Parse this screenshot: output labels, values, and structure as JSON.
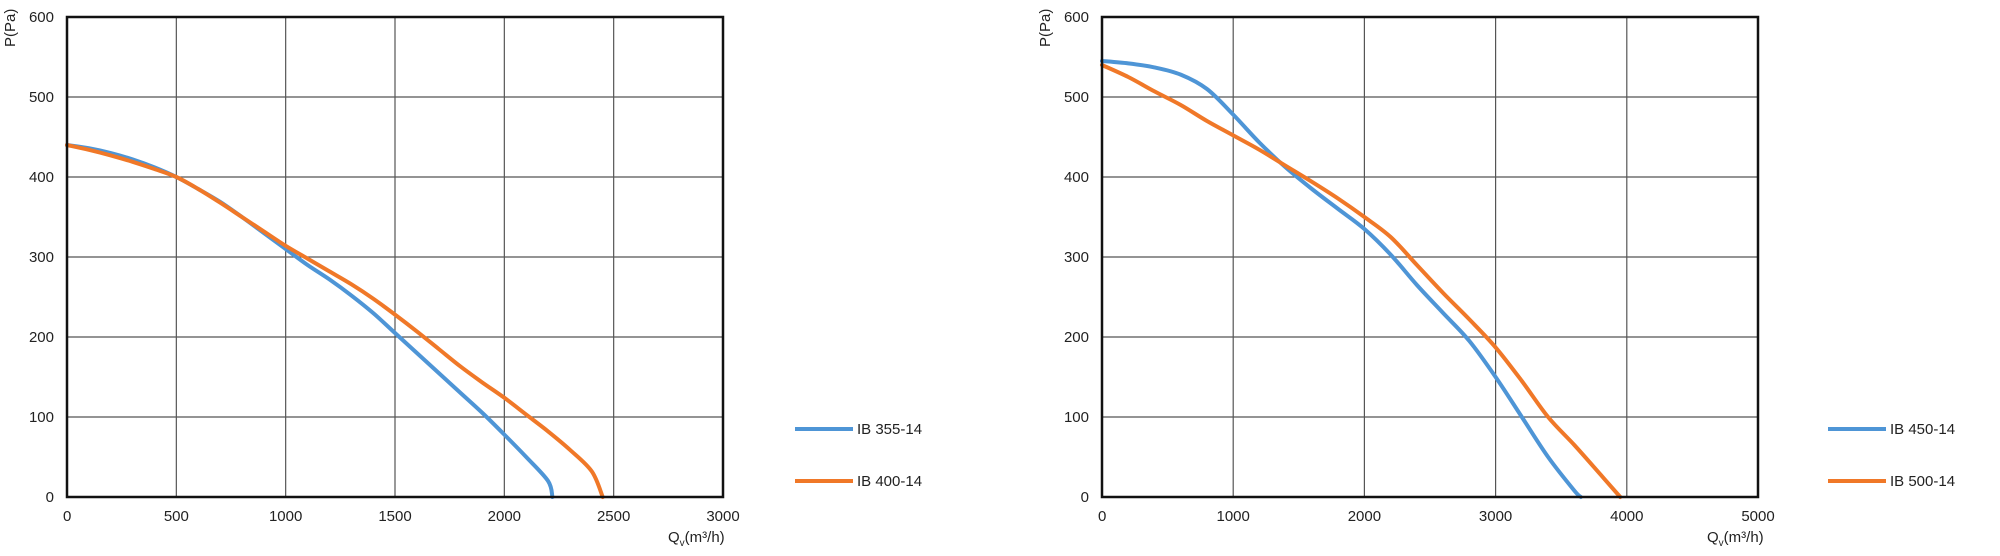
{
  "chart_data": [
    {
      "type": "line",
      "xlabel": "Q",
      "xlabel_sub": "v",
      "xlabel_unit": "(m³/h)",
      "ylabel": "P(Pa)",
      "xlim": [
        0,
        3000
      ],
      "ylim": [
        0,
        600
      ],
      "xticks": [
        0,
        500,
        1000,
        1500,
        2000,
        2500,
        3000
      ],
      "yticks": [
        0,
        100,
        200,
        300,
        400,
        500,
        600
      ],
      "grid": true,
      "legend_position": "right",
      "series": [
        {
          "name": "IB 355-14",
          "color": "#4e95d6",
          "x": [
            0,
            100,
            200,
            300,
            400,
            500,
            600,
            700,
            800,
            900,
            1000,
            1100,
            1200,
            1300,
            1400,
            1500,
            1600,
            1700,
            1800,
            1900,
            2000,
            2100,
            2200,
            2220
          ],
          "y": [
            440,
            436,
            430,
            422,
            412,
            400,
            385,
            369,
            350,
            330,
            310,
            290,
            272,
            252,
            230,
            205,
            180,
            155,
            130,
            105,
            78,
            50,
            20,
            0
          ]
        },
        {
          "name": "IB 400-14",
          "color": "#f07828",
          "x": [
            0,
            100,
            200,
            300,
            400,
            500,
            600,
            700,
            800,
            900,
            1000,
            1100,
            1200,
            1300,
            1400,
            1500,
            1600,
            1700,
            1800,
            1900,
            2000,
            2100,
            2200,
            2300,
            2400,
            2450
          ],
          "y": [
            440,
            434,
            427,
            419,
            410,
            400,
            385,
            368,
            350,
            332,
            314,
            298,
            282,
            266,
            248,
            228,
            207,
            185,
            163,
            143,
            124,
            103,
            82,
            59,
            32,
            0
          ]
        }
      ]
    },
    {
      "type": "line",
      "xlabel": "Q",
      "xlabel_sub": "v",
      "xlabel_unit": "(m³/h)",
      "ylabel": "P(Pa)",
      "xlim": [
        0,
        5000
      ],
      "ylim": [
        0,
        600
      ],
      "xticks": [
        0,
        1000,
        2000,
        3000,
        4000,
        5000
      ],
      "yticks": [
        0,
        100,
        200,
        300,
        400,
        500,
        600
      ],
      "grid": true,
      "legend_position": "right",
      "series": [
        {
          "name": "IB 450-14",
          "color": "#4e95d6",
          "x": [
            0,
            200,
            400,
            600,
            800,
            1000,
            1200,
            1400,
            1600,
            1800,
            2000,
            2200,
            2400,
            2600,
            2800,
            3000,
            3200,
            3400,
            3600,
            3650
          ],
          "y": [
            545,
            542,
            537,
            528,
            510,
            478,
            443,
            412,
            385,
            360,
            335,
            303,
            265,
            230,
            195,
            150,
            100,
            50,
            8,
            0
          ]
        },
        {
          "name": "IB 500-14",
          "color": "#f07828",
          "x": [
            0,
            200,
            400,
            600,
            800,
            1000,
            1200,
            1400,
            1600,
            1800,
            2000,
            2200,
            2400,
            2600,
            2800,
            3000,
            3200,
            3400,
            3600,
            3800,
            3950
          ],
          "y": [
            540,
            525,
            507,
            490,
            470,
            452,
            434,
            414,
            394,
            373,
            350,
            325,
            290,
            255,
            222,
            187,
            145,
            100,
            65,
            28,
            0
          ]
        }
      ]
    }
  ]
}
